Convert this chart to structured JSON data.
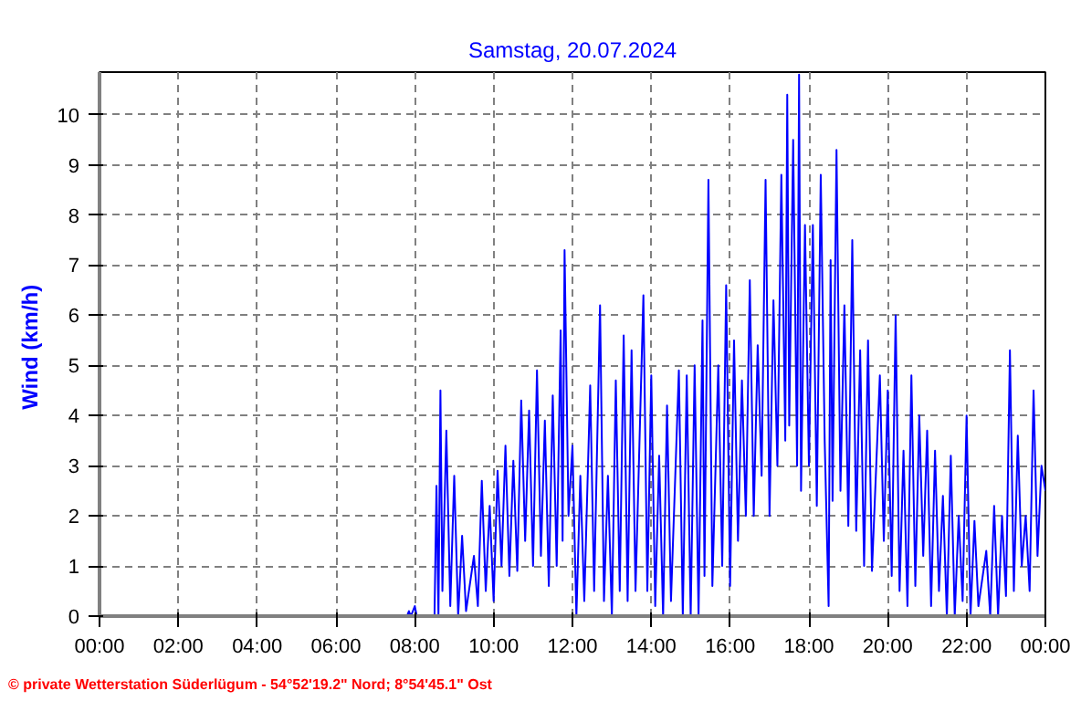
{
  "chart_data": {
    "type": "line",
    "title": "Samstag, 20.07.2024",
    "ylabel": "Wind  (km/h)",
    "annotations": [
      "© private Wetterstation Süderlügum  -  54°52'19.2\" Nord; 8°54'45.1\" Ost"
    ],
    "xlim": [
      0,
      24
    ],
    "ylim": [
      0,
      10.85
    ],
    "xticks": [
      {
        "value": 0,
        "label": "00:00"
      },
      {
        "value": 2,
        "label": "02:00"
      },
      {
        "value": 4,
        "label": "04:00"
      },
      {
        "value": 6,
        "label": "06:00"
      },
      {
        "value": 8,
        "label": "08:00"
      },
      {
        "value": 10,
        "label": "10:00"
      },
      {
        "value": 12,
        "label": "12:00"
      },
      {
        "value": 14,
        "label": "14:00"
      },
      {
        "value": 16,
        "label": "16:00"
      },
      {
        "value": 18,
        "label": "18:00"
      },
      {
        "value": 20,
        "label": "20:00"
      },
      {
        "value": 22,
        "label": "22:00"
      },
      {
        "value": 24,
        "label": "00:00"
      }
    ],
    "yticks": [
      0,
      1,
      2,
      3,
      4,
      5,
      6,
      7,
      8,
      9,
      10
    ],
    "grid": true,
    "marker": "none",
    "line_style": "solid",
    "x": [
      0,
      7.8,
      7.85,
      7.9,
      8.0,
      8.05,
      8.5,
      8.55,
      8.6,
      8.65,
      8.7,
      8.8,
      8.9,
      9.0,
      9.1,
      9.2,
      9.3,
      9.5,
      9.6,
      9.7,
      9.8,
      9.9,
      10.0,
      10.1,
      10.2,
      10.3,
      10.4,
      10.5,
      10.6,
      10.7,
      10.8,
      10.9,
      11.0,
      11.1,
      11.2,
      11.3,
      11.4,
      11.5,
      11.6,
      11.7,
      11.75,
      11.8,
      11.9,
      12.0,
      12.1,
      12.2,
      12.3,
      12.45,
      12.55,
      12.7,
      12.8,
      12.9,
      13.0,
      13.1,
      13.2,
      13.3,
      13.4,
      13.5,
      13.6,
      13.8,
      13.9,
      14.0,
      14.1,
      14.2,
      14.3,
      14.4,
      14.5,
      14.7,
      14.8,
      14.9,
      15.0,
      15.1,
      15.2,
      15.3,
      15.35,
      15.45,
      15.55,
      15.7,
      15.8,
      15.9,
      16.0,
      16.1,
      16.2,
      16.3,
      16.4,
      16.5,
      16.6,
      16.7,
      16.8,
      16.9,
      17.0,
      17.1,
      17.2,
      17.3,
      17.4,
      17.45,
      17.5,
      17.6,
      17.7,
      17.75,
      17.8,
      17.9,
      18.0,
      18.1,
      18.2,
      18.3,
      18.4,
      18.5,
      18.55,
      18.6,
      18.7,
      18.8,
      18.9,
      19.0,
      19.1,
      19.2,
      19.3,
      19.4,
      19.5,
      19.6,
      19.8,
      19.9,
      20.0,
      20.1,
      20.2,
      20.3,
      20.4,
      20.5,
      20.6,
      20.7,
      20.8,
      20.9,
      21.0,
      21.1,
      21.2,
      21.3,
      21.4,
      21.5,
      21.6,
      21.7,
      21.8,
      21.9,
      22.0,
      22.1,
      22.2,
      22.3,
      22.5,
      22.6,
      22.7,
      22.8,
      22.9,
      23.0,
      23.1,
      23.2,
      23.3,
      23.4,
      23.5,
      23.6,
      23.7,
      23.8,
      23.9,
      24.0
    ],
    "series": [
      {
        "color": "#0000ff",
        "values": [
          0,
          0,
          0.1,
          0,
          0.2,
          0,
          0,
          2.6,
          0,
          4.5,
          0.5,
          3.7,
          0.2,
          2.8,
          0,
          1.6,
          0.1,
          1.2,
          0.2,
          2.7,
          0.5,
          2.2,
          0.3,
          2.9,
          1.0,
          3.4,
          0.8,
          3.1,
          0.9,
          4.3,
          1.5,
          4.1,
          1.0,
          4.9,
          1.2,
          3.9,
          0.6,
          4.4,
          1.0,
          5.7,
          1.5,
          7.3,
          2.0,
          3.4,
          0,
          2.8,
          0.3,
          4.6,
          0.5,
          6.2,
          0.3,
          2.8,
          0,
          4.7,
          0.5,
          5.6,
          0.3,
          5.3,
          0.5,
          6.4,
          0.5,
          4.8,
          0.2,
          3.2,
          0,
          4.2,
          0.3,
          4.9,
          0,
          4.8,
          0,
          5.0,
          0,
          5.9,
          0.8,
          8.7,
          0.6,
          5.0,
          1.0,
          6.6,
          0.6,
          5.5,
          1.5,
          4.7,
          2.0,
          6.7,
          2.0,
          5.4,
          2.8,
          8.7,
          2.0,
          6.3,
          3.0,
          8.8,
          3.5,
          10.4,
          3.8,
          9.5,
          3.0,
          10.8,
          2.5,
          7.8,
          3.0,
          7.8,
          2.2,
          8.8,
          3.5,
          0.2,
          7.1,
          2.3,
          9.3,
          2.5,
          6.2,
          1.8,
          7.5,
          1.7,
          5.3,
          1.0,
          5.5,
          0.9,
          4.8,
          1.5,
          4.5,
          0.8,
          6.0,
          0.5,
          3.3,
          0.2,
          4.8,
          0.6,
          4.0,
          1.2,
          3.7,
          0.2,
          3.3,
          0.5,
          2.4,
          0,
          3.2,
          0,
          2.0,
          0.3,
          4.0,
          0,
          1.9,
          0.2,
          1.3,
          0,
          2.2,
          0,
          2.0,
          0.4,
          5.3,
          0.5,
          3.6,
          1.0,
          2.0,
          0.5,
          4.5,
          1.2,
          3.0,
          2.5
        ]
      }
    ]
  }
}
